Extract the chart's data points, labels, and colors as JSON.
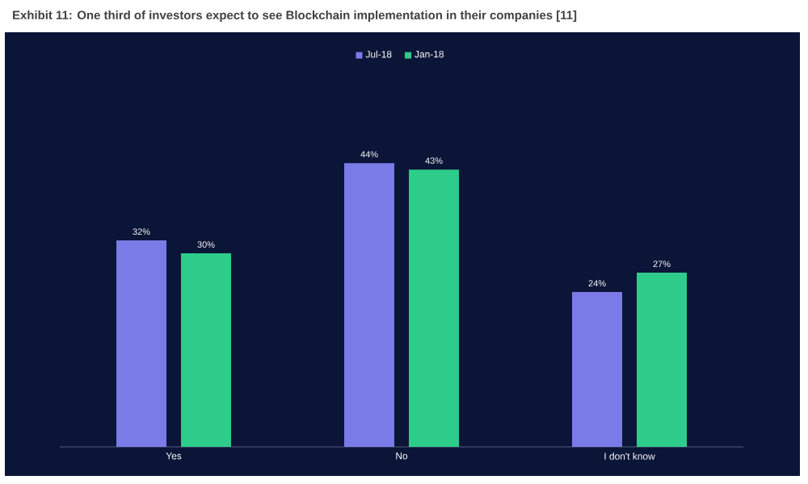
{
  "chart_data": {
    "type": "bar",
    "title": "Exhibit 11: One third of investors expect to see Blockchain implementation in their companies [11]",
    "categories": [
      "Yes",
      "No",
      "I don't know"
    ],
    "series": [
      {
        "name": "Jul-18",
        "color": "#7b7be8",
        "values": [
          32,
          44,
          24
        ],
        "value_labels": [
          "32%",
          "44%",
          "24%"
        ]
      },
      {
        "name": "Jan-18",
        "color": "#2ecc8a",
        "values": [
          30,
          43,
          27
        ],
        "value_labels": [
          "30%",
          "43%",
          "27%"
        ]
      }
    ],
    "legend": "top"
  }
}
